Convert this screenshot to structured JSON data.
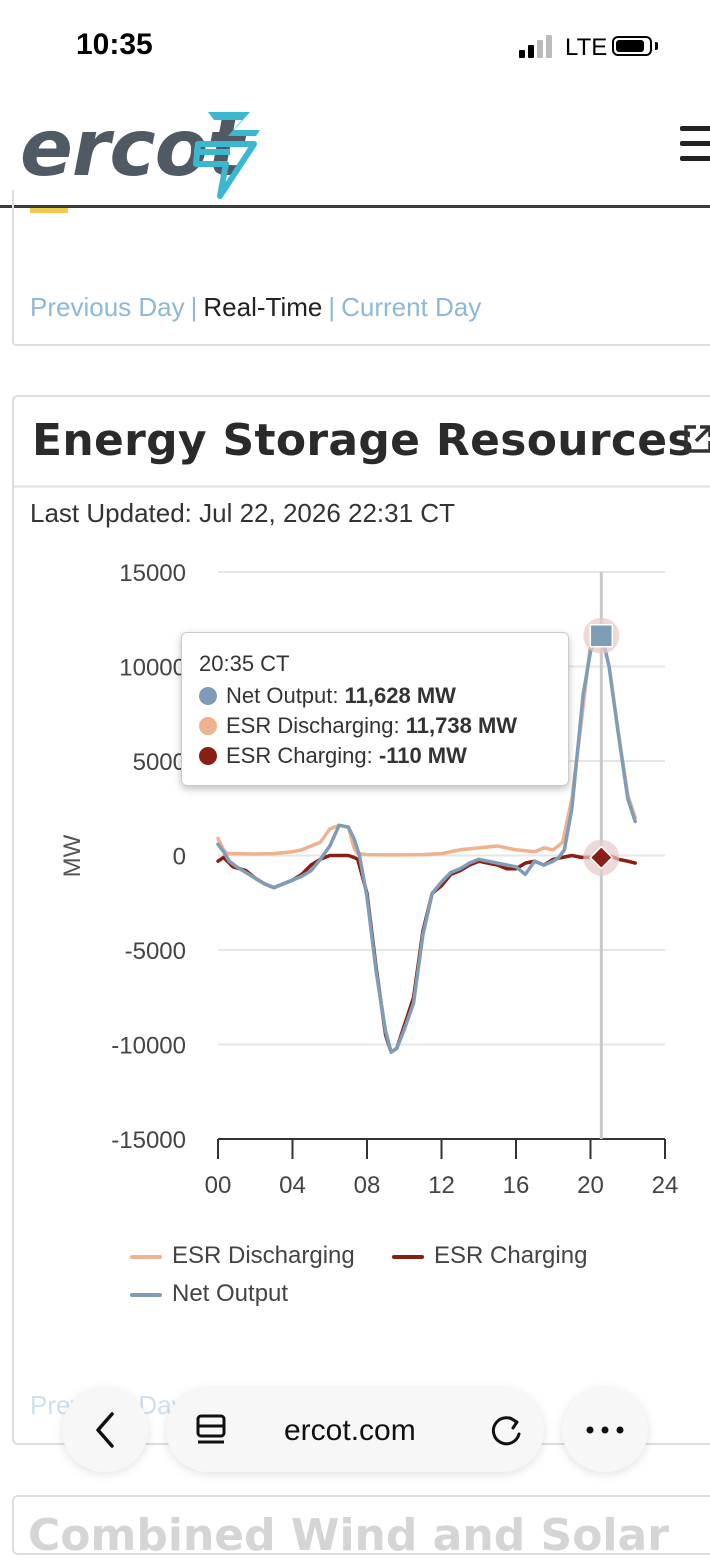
{
  "status_bar": {
    "time": "10:35",
    "network": "LTE"
  },
  "header": {
    "logo_text": "ercot"
  },
  "day_nav": {
    "previous": "Previous Day",
    "sep1": "|",
    "current_mode": "Real-Time",
    "sep2": "|",
    "next": "Current Day"
  },
  "card": {
    "title": "Energy Storage Resources",
    "last_updated": "Last Updated: Jul 22, 2026 22:31 CT"
  },
  "tooltip": {
    "time": "20:35 CT",
    "rows": [
      {
        "label": "Net Output:",
        "value": "11,628 MW",
        "color": "#7f9db7"
      },
      {
        "label": "ESR Discharging:",
        "value": "11,738 MW",
        "color": "#f0b28e"
      },
      {
        "label": "ESR Charging:",
        "value": "-110 MW",
        "color": "#8b1e14"
      }
    ]
  },
  "chart_data": {
    "type": "line",
    "ylabel": "MW",
    "xlabel": "",
    "ylim": [
      -15000,
      15000
    ],
    "xlim": [
      0,
      24
    ],
    "yticks": [
      "15000",
      "10000",
      "5000",
      "0",
      "-5000",
      "-10000",
      "-15000"
    ],
    "xticks": [
      "00",
      "04",
      "08",
      "12",
      "16",
      "20",
      "24"
    ],
    "grid": true,
    "legend_position": "bottom",
    "hover_x": 20.58,
    "series": [
      {
        "name": "ESR Discharging",
        "color": "#f0b28e",
        "x": [
          0,
          0.3,
          0.5,
          1,
          2,
          3,
          4,
          4.5,
          5,
          5.5,
          6,
          6.5,
          7,
          7.3,
          7.5,
          8,
          9,
          10,
          11,
          12,
          13,
          14,
          15,
          16,
          17,
          17.5,
          18,
          18.5,
          19,
          19.5,
          20,
          20.3,
          20.6,
          21,
          21.5,
          22,
          22.4
        ],
        "y": [
          900,
          300,
          100,
          100,
          80,
          100,
          200,
          300,
          500,
          700,
          1400,
          1600,
          1500,
          400,
          100,
          50,
          30,
          30,
          50,
          100,
          300,
          400,
          500,
          300,
          200,
          400,
          300,
          700,
          3000,
          7000,
          11200,
          11600,
          11738,
          10000,
          6500,
          3200,
          2000
        ]
      },
      {
        "name": "ESR Charging",
        "color": "#8b1e14",
        "x": [
          0,
          0.3,
          0.8,
          1.5,
          2,
          2.5,
          3,
          3.5,
          4,
          4.5,
          5,
          5.5,
          6,
          6.5,
          7,
          7.3,
          7.5,
          8,
          8.5,
          9,
          9.3,
          9.6,
          10,
          10.5,
          11,
          11.5,
          12,
          12.5,
          13,
          13.5,
          14,
          14.5,
          15,
          15.5,
          16,
          16.5,
          17,
          17.5,
          18,
          18.5,
          19,
          19.5,
          20,
          20.6,
          21,
          21.5,
          22,
          22.4
        ],
        "y": [
          -300,
          -100,
          -600,
          -800,
          -1200,
          -1500,
          -1700,
          -1500,
          -1300,
          -1000,
          -500,
          -200,
          0,
          0,
          0,
          -100,
          -200,
          -2000,
          -6000,
          -9500,
          -10400,
          -10200,
          -9000,
          -7500,
          -4000,
          -2000,
          -1600,
          -1000,
          -800,
          -500,
          -300,
          -400,
          -500,
          -700,
          -700,
          -400,
          -300,
          -500,
          -200,
          -100,
          0,
          -100,
          -100,
          -110,
          0,
          -200,
          -300,
          -400
        ]
      },
      {
        "name": "Net Output",
        "color": "#7f9db7",
        "x": [
          0,
          0.3,
          0.6,
          1,
          1.5,
          2,
          2.5,
          3,
          3.5,
          4,
          4.5,
          5,
          5.5,
          6,
          6.5,
          7,
          7.3,
          7.6,
          8,
          8.5,
          9,
          9.3,
          9.6,
          10,
          10.5,
          11,
          11.5,
          12,
          12.5,
          13,
          13.5,
          14,
          14.5,
          15,
          15.5,
          16,
          16.5,
          17,
          17.5,
          18,
          18.3,
          18.6,
          19,
          19.3,
          19.6,
          20,
          20.3,
          20.6,
          21,
          21.5,
          22,
          22.4
        ],
        "y": [
          600,
          200,
          -300,
          -600,
          -900,
          -1200,
          -1500,
          -1700,
          -1500,
          -1300,
          -1100,
          -800,
          -200,
          500,
          1600,
          1500,
          900,
          0,
          -2200,
          -6200,
          -9300,
          -10400,
          -10200,
          -9200,
          -7800,
          -4200,
          -2000,
          -1400,
          -900,
          -700,
          -400,
          -200,
          -300,
          -400,
          -500,
          -600,
          -1000,
          -300,
          -500,
          -300,
          -100,
          300,
          2500,
          5500,
          8500,
          10800,
          11600,
          11628,
          10000,
          6400,
          3000,
          1800
        ]
      }
    ]
  },
  "legend": [
    {
      "label": "ESR Discharging",
      "color": "#f0b28e"
    },
    {
      "label": "ESR Charging",
      "color": "#8b1e14"
    },
    {
      "label": "Net Output",
      "color": "#7f9db7"
    }
  ],
  "faded_nav": {
    "text": "Previous Day | Real-Time"
  },
  "browser": {
    "url": "ercot.com"
  },
  "next_card": {
    "title": "Combined Wind and Solar"
  }
}
